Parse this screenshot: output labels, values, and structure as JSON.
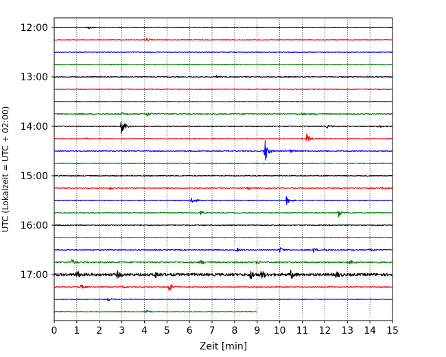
{
  "chart_data": {
    "type": "line",
    "title": "",
    "xlabel": "Zeit  [min]",
    "ylabel": "UTC (Lokalzeit = UTC + 02:00)",
    "xlim": [
      0,
      15
    ],
    "x_ticks": [
      "0",
      "1",
      "2",
      "3",
      "4",
      "5",
      "6",
      "7",
      "8",
      "9",
      "10",
      "11",
      "12",
      "13",
      "14",
      "15"
    ],
    "y_ticks": [
      "12:00",
      "13:00",
      "14:00",
      "15:00",
      "16:00",
      "17:00"
    ],
    "grid": "vertical-dotted",
    "trace_interval_minutes": 15,
    "trace_colors": [
      "#000000",
      "#ff0000",
      "#0000ff",
      "#008000"
    ],
    "traces": [
      {
        "start": "12:00",
        "color": "#000000",
        "end_min": 15,
        "noise": 0.5,
        "events": [
          {
            "t": 1.5,
            "a": 2.0
          }
        ]
      },
      {
        "start": "12:15",
        "color": "#ff0000",
        "end_min": 15,
        "noise": 0.5,
        "events": [
          {
            "t": 4.1,
            "a": 2.5
          }
        ]
      },
      {
        "start": "12:30",
        "color": "#0000ff",
        "end_min": 15,
        "noise": 0.5,
        "events": []
      },
      {
        "start": "12:45",
        "color": "#008000",
        "end_min": 15,
        "noise": 0.6,
        "events": []
      },
      {
        "start": "13:00",
        "color": "#000000",
        "end_min": 15,
        "noise": 0.6,
        "events": [
          {
            "t": 7.2,
            "a": 1.6
          }
        ]
      },
      {
        "start": "13:15",
        "color": "#ff0000",
        "end_min": 15,
        "noise": 0.5,
        "events": []
      },
      {
        "start": "13:30",
        "color": "#0000ff",
        "end_min": 15,
        "noise": 0.5,
        "events": []
      },
      {
        "start": "13:45",
        "color": "#008000",
        "end_min": 15,
        "noise": 0.8,
        "events": [
          {
            "t": 4.1,
            "a": 3.5
          },
          {
            "t": 3.0,
            "a": 2.0
          },
          {
            "t": 11.0,
            "a": 1.8
          }
        ]
      },
      {
        "start": "14:00",
        "color": "#000000",
        "end_min": 15,
        "noise": 0.6,
        "events": [
          {
            "t": 3.0,
            "a": 14.0
          },
          {
            "t": 12.1,
            "a": 2.2
          },
          {
            "t": 14.4,
            "a": 2.0
          }
        ]
      },
      {
        "start": "14:15",
        "color": "#ff0000",
        "end_min": 15,
        "noise": 0.5,
        "events": [
          {
            "t": 11.2,
            "a": 7.0
          },
          {
            "t": 1.4,
            "a": 1.5
          }
        ]
      },
      {
        "start": "14:30",
        "color": "#0000ff",
        "end_min": 15,
        "noise": 0.7,
        "events": [
          {
            "t": 9.35,
            "a": 17.0
          },
          {
            "t": 10.5,
            "a": 2.0
          }
        ]
      },
      {
        "start": "14:45",
        "color": "#008000",
        "end_min": 15,
        "noise": 0.6,
        "events": []
      },
      {
        "start": "15:00",
        "color": "#000000",
        "end_min": 15,
        "noise": 0.8,
        "events": []
      },
      {
        "start": "15:15",
        "color": "#ff0000",
        "end_min": 15,
        "noise": 0.6,
        "events": [
          {
            "t": 2.5,
            "a": 3.0
          },
          {
            "t": 8.6,
            "a": 2.5
          },
          {
            "t": 14.5,
            "a": 2.5
          }
        ]
      },
      {
        "start": "15:30",
        "color": "#0000ff",
        "end_min": 15,
        "noise": 0.6,
        "events": [
          {
            "t": 6.1,
            "a": 6.5
          },
          {
            "t": 10.3,
            "a": 6.0
          }
        ]
      },
      {
        "start": "15:45",
        "color": "#008000",
        "end_min": 15,
        "noise": 0.6,
        "events": [
          {
            "t": 6.5,
            "a": 4.0
          },
          {
            "t": 12.6,
            "a": 7.0
          }
        ]
      },
      {
        "start": "16:00",
        "color": "#000000",
        "end_min": 15,
        "noise": 0.7,
        "events": []
      },
      {
        "start": "16:15",
        "color": "#ff0000",
        "end_min": 15,
        "noise": 0.5,
        "events": []
      },
      {
        "start": "16:30",
        "color": "#0000ff",
        "end_min": 15,
        "noise": 0.7,
        "events": [
          {
            "t": 8.1,
            "a": 2.5
          },
          {
            "t": 10.0,
            "a": 4.0
          },
          {
            "t": 11.5,
            "a": 3.5
          },
          {
            "t": 12.0,
            "a": 3.5
          },
          {
            "t": 14.0,
            "a": 3.0
          }
        ]
      },
      {
        "start": "16:45",
        "color": "#008000",
        "end_min": 15,
        "noise": 1.1,
        "events": [
          {
            "t": 0.8,
            "a": 3.5
          },
          {
            "t": 6.5,
            "a": 3.0
          },
          {
            "t": 13.1,
            "a": 4.0
          },
          {
            "t": 9.0,
            "a": 2.5
          }
        ]
      },
      {
        "start": "17:00",
        "color": "#000000",
        "end_min": 15,
        "noise": 2.0,
        "events": [
          {
            "t": 1.0,
            "a": 5.0
          },
          {
            "t": 2.8,
            "a": 4.0
          },
          {
            "t": 4.5,
            "a": 4.0
          },
          {
            "t": 8.7,
            "a": 6.0
          },
          {
            "t": 9.2,
            "a": 6.0
          },
          {
            "t": 10.5,
            "a": 5.0
          },
          {
            "t": 12.5,
            "a": 4.5
          }
        ]
      },
      {
        "start": "17:15",
        "color": "#ff0000",
        "end_min": 15,
        "noise": 0.6,
        "events": [
          {
            "t": 1.2,
            "a": 3.0
          },
          {
            "t": 5.1,
            "a": 6.5
          },
          {
            "t": 3.0,
            "a": 2.0
          }
        ]
      },
      {
        "start": "17:30",
        "color": "#0000ff",
        "end_min": 15,
        "noise": 0.5,
        "events": [
          {
            "t": 2.4,
            "a": 2.5
          }
        ]
      },
      {
        "start": "17:45",
        "color": "#008000",
        "end_min": 9.0,
        "noise": 0.5,
        "events": [
          {
            "t": 4.1,
            "a": 2.0
          }
        ]
      }
    ]
  }
}
